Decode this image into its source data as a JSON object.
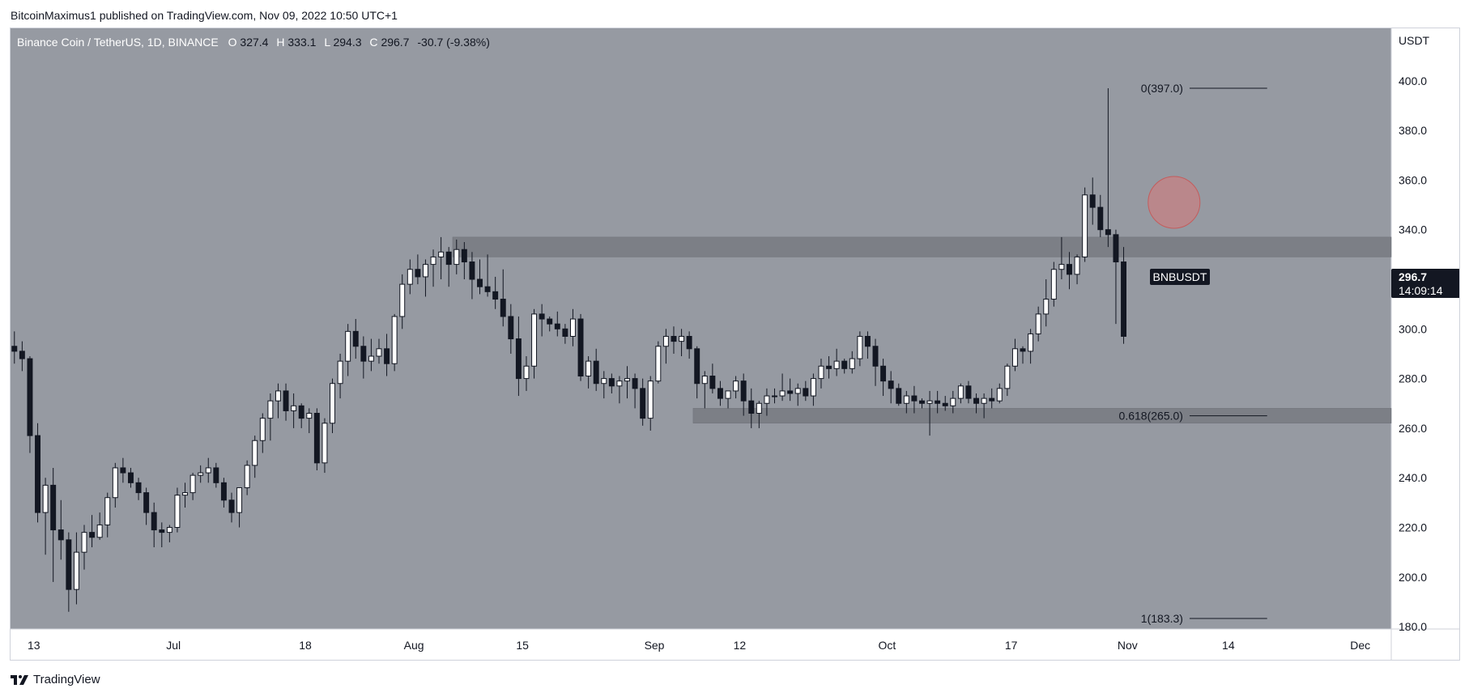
{
  "header": {
    "published_line": "BitcoinMaximus1 published on TradingView.com, Nov 09, 2022 10:50 UTC+1"
  },
  "legend": {
    "symbol": "Binance Coin / TetherUS, 1D, BINANCE",
    "open_label": "O",
    "open": "327.4",
    "high_label": "H",
    "high": "333.1",
    "low_label": "L",
    "low": "294.3",
    "close_label": "C",
    "close": "296.7",
    "change": "-30.7 (-9.38%)"
  },
  "price_tag": {
    "symbol": "BNBUSDT",
    "price": "296.7",
    "countdown": "14:09:14"
  },
  "footer": {
    "brand": "TradingView"
  },
  "colors": {
    "background": "#969aa2",
    "up": "#ffffff",
    "down": "#131722",
    "zone": "#7c7f86",
    "circle": "#d97979",
    "axis_bg": "#ffffff",
    "tag_bg": "#131722"
  },
  "chart_data": {
    "type": "candlestick",
    "title": "Binance Coin / TetherUS, 1D, BINANCE",
    "y_unit": "USDT",
    "ylim": [
      172,
      412
    ],
    "y_ticks": [
      180,
      200,
      220,
      240,
      260,
      280,
      300,
      320,
      340,
      360,
      380,
      400
    ],
    "y_tick_labels": [
      "180.0",
      "200.0",
      "220.0",
      "240.0",
      "260.0",
      "280.0",
      "300.0",
      "320.0",
      "340.0",
      "360.0",
      "380.0",
      "400.0"
    ],
    "x_start_date": "2022-06-10",
    "x_end_date": "2022-12-05",
    "x_ticks": [
      {
        "date": "2022-06-13",
        "label": "13"
      },
      {
        "date": "2022-07-01",
        "label": "Jul"
      },
      {
        "date": "2022-07-18",
        "label": "18"
      },
      {
        "date": "2022-08-01",
        "label": "Aug"
      },
      {
        "date": "2022-08-15",
        "label": "15"
      },
      {
        "date": "2022-09-01",
        "label": "Sep"
      },
      {
        "date": "2022-09-12",
        "label": "12"
      },
      {
        "date": "2022-10-01",
        "label": "Oct"
      },
      {
        "date": "2022-10-17",
        "label": "17"
      },
      {
        "date": "2022-11-01",
        "label": "Nov"
      },
      {
        "date": "2022-11-14",
        "label": "14"
      },
      {
        "date": "2022-12-01",
        "label": "Dec"
      }
    ],
    "candles_start_date": "2022-06-10",
    "ohlc": [
      [
        293,
        299,
        286,
        291
      ],
      [
        291,
        295,
        283,
        288
      ],
      [
        288,
        289,
        250,
        257
      ],
      [
        257,
        262,
        222,
        226
      ],
      [
        226,
        240,
        209,
        237
      ],
      [
        237,
        244,
        198,
        219
      ],
      [
        219,
        231,
        207,
        215
      ],
      [
        215,
        218,
        186,
        195
      ],
      [
        195,
        218,
        189,
        210
      ],
      [
        210,
        221,
        203,
        218
      ],
      [
        218,
        225,
        212,
        216
      ],
      [
        216,
        226,
        215,
        221
      ],
      [
        221,
        234,
        216,
        232
      ],
      [
        232,
        246,
        228,
        244
      ],
      [
        244,
        248,
        238,
        242
      ],
      [
        242,
        244,
        236,
        238
      ],
      [
        238,
        240,
        231,
        234
      ],
      [
        234,
        236,
        221,
        226
      ],
      [
        226,
        230,
        212,
        219
      ],
      [
        219,
        222,
        212,
        218
      ],
      [
        218,
        221,
        214,
        220
      ],
      [
        220,
        236,
        218,
        233
      ],
      [
        233,
        238,
        228,
        234
      ],
      [
        234,
        242,
        231,
        241
      ],
      [
        241,
        245,
        238,
        242
      ],
      [
        242,
        248,
        238,
        244
      ],
      [
        244,
        246,
        236,
        238
      ],
      [
        238,
        240,
        228,
        231
      ],
      [
        231,
        234,
        222,
        226
      ],
      [
        226,
        236,
        220,
        236
      ],
      [
        236,
        247,
        233,
        245
      ],
      [
        245,
        257,
        240,
        255
      ],
      [
        255,
        266,
        250,
        264
      ],
      [
        264,
        274,
        255,
        271
      ],
      [
        271,
        278,
        264,
        275
      ],
      [
        275,
        278,
        263,
        267
      ],
      [
        267,
        274,
        260,
        269
      ],
      [
        269,
        270,
        260,
        264
      ],
      [
        264,
        268,
        258,
        266
      ],
      [
        266,
        268,
        243,
        246
      ],
      [
        246,
        264,
        242,
        262
      ],
      [
        262,
        280,
        258,
        278
      ],
      [
        278,
        290,
        272,
        287
      ],
      [
        287,
        302,
        281,
        299
      ],
      [
        299,
        304,
        288,
        293
      ],
      [
        293,
        297,
        280,
        287
      ],
      [
        287,
        296,
        283,
        289
      ],
      [
        289,
        296,
        286,
        292
      ],
      [
        292,
        298,
        281,
        286
      ],
      [
        286,
        306,
        283,
        305
      ],
      [
        305,
        322,
        300,
        318
      ],
      [
        318,
        328,
        314,
        324
      ],
      [
        324,
        330,
        318,
        321
      ],
      [
        321,
        328,
        313,
        326
      ],
      [
        326,
        332,
        317,
        329
      ],
      [
        329,
        337,
        320,
        331
      ],
      [
        331,
        333,
        317,
        326
      ],
      [
        326,
        336,
        322,
        332
      ],
      [
        332,
        335,
        320,
        327
      ],
      [
        327,
        331,
        312,
        320
      ],
      [
        320,
        328,
        314,
        317
      ],
      [
        317,
        330,
        313,
        315
      ],
      [
        315,
        321,
        308,
        312
      ],
      [
        312,
        324,
        301,
        305
      ],
      [
        305,
        310,
        290,
        296
      ],
      [
        296,
        305,
        273,
        280
      ],
      [
        280,
        289,
        275,
        285
      ],
      [
        285,
        308,
        280,
        306
      ],
      [
        306,
        310,
        297,
        304
      ],
      [
        304,
        305,
        299,
        302
      ],
      [
        302,
        307,
        297,
        300
      ],
      [
        300,
        302,
        294,
        297
      ],
      [
        297,
        308,
        293,
        304
      ],
      [
        304,
        306,
        279,
        281
      ],
      [
        281,
        289,
        276,
        287
      ],
      [
        287,
        292,
        275,
        278
      ],
      [
        278,
        283,
        272,
        280
      ],
      [
        280,
        282,
        274,
        277
      ],
      [
        277,
        281,
        270,
        279
      ],
      [
        279,
        285,
        272,
        280
      ],
      [
        280,
        282,
        268,
        276
      ],
      [
        276,
        280,
        261,
        264
      ],
      [
        264,
        281,
        259,
        279
      ],
      [
        279,
        295,
        278,
        293
      ],
      [
        293,
        300,
        286,
        297
      ],
      [
        297,
        301,
        290,
        295
      ],
      [
        295,
        300,
        289,
        297
      ],
      [
        297,
        299,
        288,
        292
      ],
      [
        292,
        293,
        272,
        278
      ],
      [
        278,
        283,
        268,
        281
      ],
      [
        281,
        286,
        274,
        276
      ],
      [
        276,
        279,
        269,
        272
      ],
      [
        272,
        275,
        268,
        275
      ],
      [
        275,
        281,
        272,
        279
      ],
      [
        279,
        282,
        265,
        271
      ],
      [
        271,
        276,
        260,
        266
      ],
      [
        266,
        271,
        260,
        270
      ],
      [
        270,
        276,
        265,
        273
      ],
      [
        273,
        276,
        270,
        273
      ],
      [
        273,
        282,
        271,
        275
      ],
      [
        275,
        280,
        271,
        274
      ],
      [
        274,
        278,
        269,
        276
      ],
      [
        276,
        279,
        271,
        273
      ],
      [
        273,
        282,
        269,
        280
      ],
      [
        280,
        288,
        276,
        285
      ],
      [
        285,
        289,
        280,
        284
      ],
      [
        284,
        292,
        281,
        287
      ],
      [
        287,
        288,
        282,
        284
      ],
      [
        284,
        291,
        282,
        288
      ],
      [
        288,
        299,
        285,
        297
      ],
      [
        297,
        299,
        288,
        293
      ],
      [
        293,
        296,
        277,
        285
      ],
      [
        285,
        288,
        273,
        279
      ],
      [
        279,
        283,
        270,
        276
      ],
      [
        276,
        278,
        269,
        270
      ],
      [
        270,
        275,
        266,
        273
      ],
      [
        273,
        277,
        266,
        271
      ],
      [
        271,
        272,
        268,
        270
      ],
      [
        270,
        275,
        257,
        271
      ],
      [
        271,
        275,
        266,
        270
      ],
      [
        270,
        273,
        267,
        269
      ],
      [
        269,
        275,
        266,
        272
      ],
      [
        272,
        278,
        270,
        277
      ],
      [
        277,
        279,
        270,
        272
      ],
      [
        272,
        274,
        266,
        270
      ],
      [
        270,
        274,
        264,
        272
      ],
      [
        272,
        276,
        268,
        271
      ],
      [
        271,
        278,
        270,
        276
      ],
      [
        276,
        286,
        273,
        285
      ],
      [
        285,
        296,
        283,
        292
      ],
      [
        292,
        293,
        286,
        291
      ],
      [
        291,
        300,
        286,
        298
      ],
      [
        298,
        309,
        295,
        306
      ],
      [
        306,
        320,
        301,
        312
      ],
      [
        312,
        327,
        309,
        324
      ],
      [
        324,
        337,
        320,
        326
      ],
      [
        326,
        331,
        316,
        322
      ],
      [
        322,
        330,
        318,
        329
      ],
      [
        329,
        357,
        327,
        354
      ],
      [
        354,
        361,
        342,
        349
      ],
      [
        349,
        354,
        337,
        340
      ],
      [
        340,
        397,
        333,
        338
      ],
      [
        338,
        340,
        302,
        327
      ],
      [
        327,
        333,
        294,
        297
      ]
    ],
    "zones": [
      {
        "from_date": "2022-08-06",
        "to_date": "2022-12-05",
        "low": 329,
        "high": 337
      },
      {
        "from_date": "2022-09-06",
        "to_date": "2022-12-05",
        "low": 262,
        "high": 268
      }
    ],
    "fib_levels": [
      {
        "label": "0(397.0)",
        "value": 397.0
      },
      {
        "label": "0.618(265.0)",
        "value": 265.0
      },
      {
        "label": "1(183.3)",
        "value": 183.3
      }
    ],
    "fib_line_from_date": "2022-11-09",
    "fib_line_to_date": "2022-11-19",
    "highlight": {
      "date": "2022-11-07",
      "value": 351
    }
  }
}
